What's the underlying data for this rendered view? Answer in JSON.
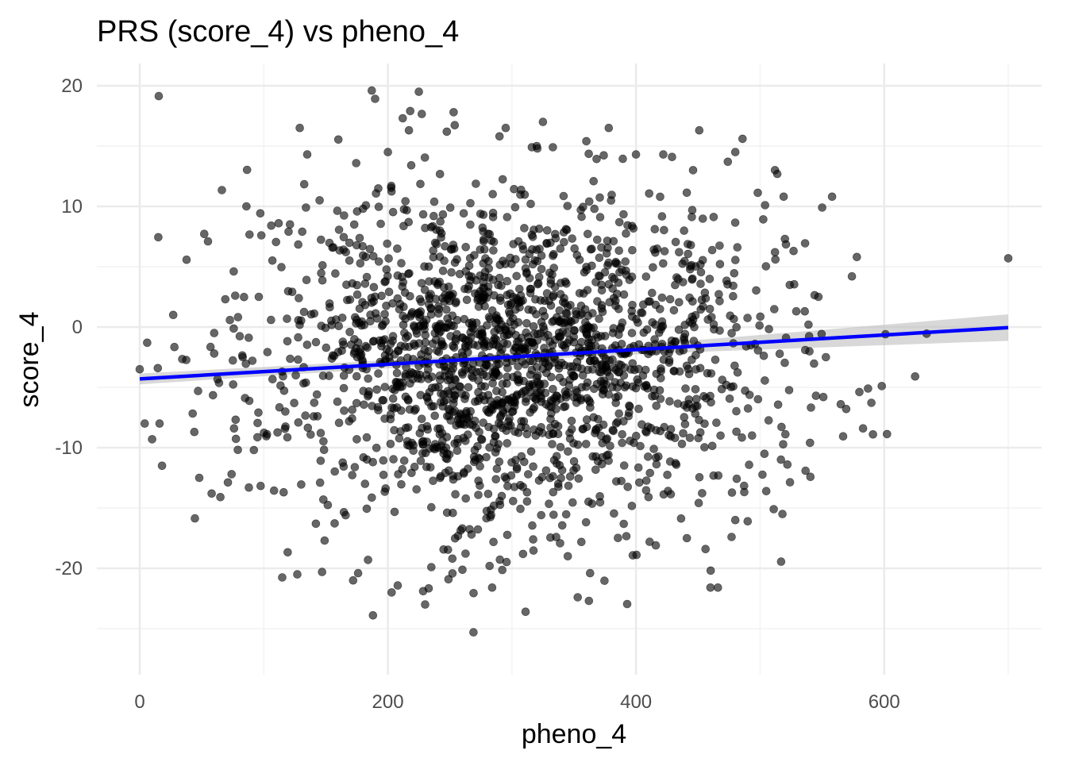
{
  "chart_data": {
    "type": "scatter",
    "title": "PRS (score_4) vs pheno_4",
    "xlabel": "pheno_4",
    "ylabel": "score_4",
    "xlim": [
      -35,
      735
    ],
    "ylim": [
      -28,
      22
    ],
    "x_ticks": [
      0,
      200,
      400,
      600
    ],
    "x_tick_labels": [
      "0",
      "200",
      "400",
      "600"
    ],
    "x_minor_ticks": [
      100,
      300,
      500,
      700
    ],
    "y_ticks": [
      -20,
      -10,
      0,
      10,
      20
    ],
    "y_tick_labels": [
      "-20",
      "-10",
      "0",
      "10",
      "20"
    ],
    "y_minor_ticks": [
      -25,
      -15,
      -5,
      5,
      15
    ],
    "grid": true,
    "legend": "none",
    "point_color": "#000000",
    "point_opacity": 0.6,
    "fit_line": {
      "method": "linear regression",
      "color": "#0000ff",
      "ci_color": "#bebebe",
      "x": [
        0,
        700
      ],
      "y": [
        -4.3,
        -0.05
      ],
      "ci_lower": [
        -4.75,
        -1.15
      ],
      "ci_upper": [
        -3.85,
        1.05
      ]
    },
    "points_summary": {
      "n_approx": 2000,
      "x_mean": 305,
      "x_sd": 98,
      "y_mean": -2.4,
      "y_sd": 6.8
    },
    "points": [
      [
        0,
        -3.5
      ],
      [
        4,
        -8
      ],
      [
        6,
        -1.3
      ],
      [
        10,
        -9.3
      ],
      [
        16,
        -8
      ],
      [
        18,
        -11.5
      ],
      [
        27,
        1
      ],
      [
        44,
        -8.7
      ],
      [
        47,
        -5.3
      ],
      [
        48,
        -12.5
      ],
      [
        55,
        7.1
      ],
      [
        58,
        -13.8
      ],
      [
        60,
        -2.2
      ],
      [
        60,
        -0.5
      ],
      [
        65,
        -14.1
      ],
      [
        69,
        2.3
      ],
      [
        74,
        -12.2
      ],
      [
        76,
        -8.4
      ],
      [
        77,
        2.6
      ],
      [
        83,
        -2.5
      ],
      [
        86,
        10
      ],
      [
        88,
        -13.3
      ],
      [
        92,
        -10.2
      ],
      [
        96,
        2.5
      ],
      [
        98,
        7.6
      ],
      [
        106,
        8.4
      ],
      [
        112,
        8.6
      ],
      [
        116,
        -13.7
      ],
      [
        120,
        7.9
      ],
      [
        127,
        -20.5
      ],
      [
        129,
        16.5
      ],
      [
        131,
        7.9
      ],
      [
        134,
        9.9
      ],
      [
        135,
        14.3
      ],
      [
        142,
        -16.3
      ],
      [
        145,
        10.5
      ],
      [
        147,
        -20.3
      ],
      [
        148,
        -14.3
      ],
      [
        149,
        -17.7
      ],
      [
        166,
        -15.6
      ],
      [
        172,
        -21
      ],
      [
        176,
        -20.4
      ],
      [
        180,
        9.8
      ],
      [
        184,
        -19.3
      ],
      [
        187,
        19.6
      ],
      [
        188,
        -23.9
      ],
      [
        200,
        14.5
      ],
      [
        203,
        -22
      ],
      [
        212,
        17.3
      ],
      [
        217,
        16.3
      ],
      [
        218,
        17.9
      ],
      [
        225,
        19.5
      ],
      [
        230,
        -23
      ],
      [
        235,
        -19.9
      ],
      [
        252,
        -19.2
      ],
      [
        253,
        17.8
      ],
      [
        260,
        -16.7
      ],
      [
        269,
        -25.3
      ],
      [
        277,
        9.3
      ],
      [
        282,
        -19.8
      ],
      [
        284,
        -21.6
      ],
      [
        290,
        15.8
      ],
      [
        295,
        16.5
      ],
      [
        311,
        -23.6
      ],
      [
        316,
        14.9
      ],
      [
        320,
        15
      ],
      [
        325,
        17
      ],
      [
        333,
        14.9
      ],
      [
        345,
        -19
      ],
      [
        353,
        -22.4
      ],
      [
        360,
        15.4
      ],
      [
        362,
        -22.7
      ],
      [
        363,
        -20.4
      ],
      [
        378,
        16.5
      ],
      [
        400,
        14.3
      ],
      [
        411,
        -17.8
      ],
      [
        416,
        -18.1
      ],
      [
        422,
        14.3
      ],
      [
        429,
        14.1
      ],
      [
        441,
        -17.5
      ],
      [
        446,
        13
      ],
      [
        451,
        16.3
      ],
      [
        456,
        -18.4
      ],
      [
        460,
        -21.6
      ],
      [
        466,
        -21.6
      ],
      [
        474,
        13.7
      ],
      [
        477,
        -17.4
      ],
      [
        480,
        14.5
      ],
      [
        480,
        -16
      ],
      [
        490,
        -16.1
      ],
      [
        504,
        10.1
      ],
      [
        505,
        -13.6
      ],
      [
        511,
        -15.1
      ],
      [
        512,
        13
      ],
      [
        512,
        6.2
      ],
      [
        518,
        -15.5
      ],
      [
        519,
        10.8
      ],
      [
        520,
        7.3
      ],
      [
        522,
        -11.4
      ],
      [
        527,
        6.3
      ],
      [
        536,
        1.3
      ],
      [
        539,
        0.2
      ],
      [
        545,
        -5.7
      ],
      [
        547,
        2.5
      ],
      [
        550,
        9.9
      ],
      [
        551,
        -5.8
      ],
      [
        553,
        -2.5
      ],
      [
        558,
        10.8
      ],
      [
        565,
        -6.4
      ],
      [
        574,
        4.2
      ],
      [
        578,
        5.8
      ],
      [
        583,
        -8.4
      ],
      [
        587,
        -5.1
      ],
      [
        591,
        -8.9
      ],
      [
        601,
        -0.6
      ],
      [
        700,
        5.7
      ]
    ]
  }
}
